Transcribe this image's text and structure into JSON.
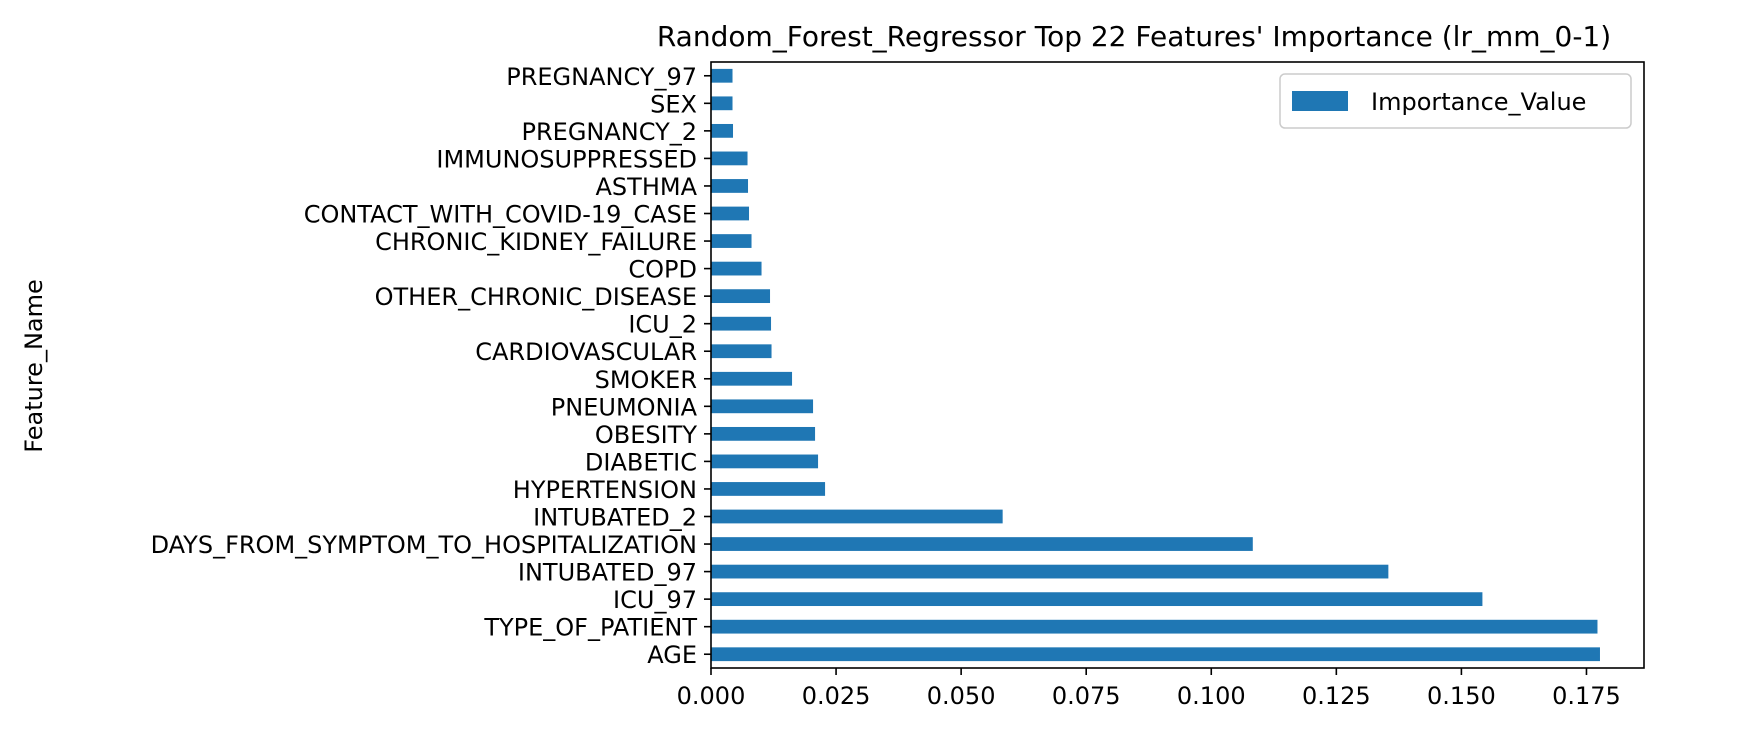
{
  "chart_data": {
    "type": "bar",
    "orientation": "horizontal",
    "title": "Random_Forest_Regressor Top 22 Features' Importance (lr_mm_0-1)",
    "xlabel": "",
    "ylabel": "Feature_Name",
    "xlim": [
      0.0,
      0.1865
    ],
    "xticks": [
      0.0,
      0.025,
      0.05,
      0.075,
      0.1,
      0.125,
      0.15,
      0.175
    ],
    "xtick_labels": [
      "0.000",
      "0.025",
      "0.050",
      "0.075",
      "0.100",
      "0.125",
      "0.150",
      "0.175"
    ],
    "grid": false,
    "legend": {
      "position": "top-right",
      "entries": [
        "Importance_Value"
      ]
    },
    "bar_color": "#1f77b4",
    "categories": [
      "AGE",
      "TYPE_OF_PATIENT",
      "ICU_97",
      "INTUBATED_97",
      "DAYS_FROM_SYMPTOM_TO_HOSPITALIZATION",
      "INTUBATED_2",
      "HYPERTENSION",
      "DIABETIC",
      "OBESITY",
      "PNEUMONIA",
      "SMOKER",
      "CARDIOVASCULAR",
      "ICU_2",
      "OTHER_CHRONIC_DISEASE",
      "COPD",
      "CHRONIC_KIDNEY_FAILURE",
      "CONTACT_WITH_COVID-19_CASE",
      "ASTHMA",
      "IMMUNOSUPPRESSED",
      "PREGNANCY_2",
      "SEX",
      "PREGNANCY_97"
    ],
    "series": [
      {
        "name": "Importance_Value",
        "values": [
          0.1777,
          0.1772,
          0.1542,
          0.1354,
          0.1083,
          0.0583,
          0.0228,
          0.0214,
          0.0208,
          0.0204,
          0.0162,
          0.0121,
          0.012,
          0.0118,
          0.0101,
          0.0081,
          0.0076,
          0.0074,
          0.0073,
          0.0044,
          0.0043,
          0.0043
        ]
      }
    ]
  }
}
